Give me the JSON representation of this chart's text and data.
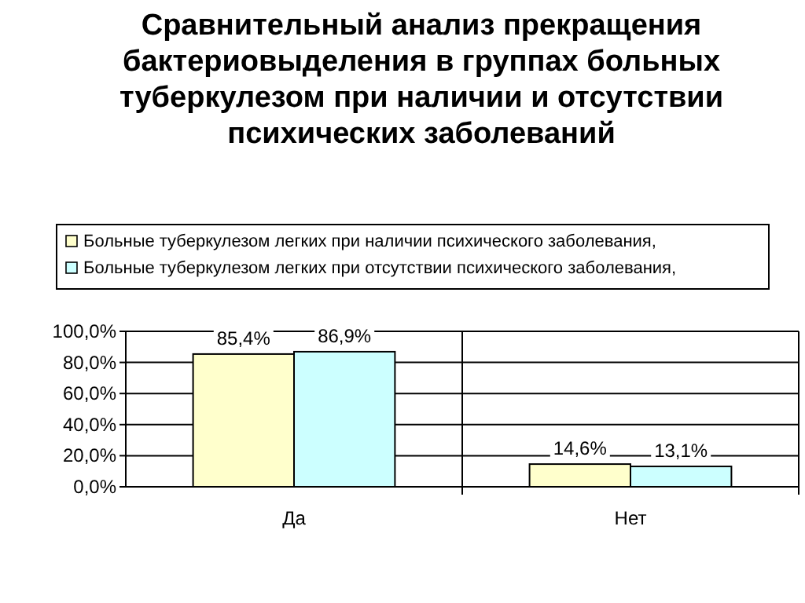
{
  "chart_data": {
    "type": "bar",
    "title": "Сравнительный анализ прекращения бактериовыделения в группах больных туберкулезом при наличии и отсутствии психических заболеваний",
    "categories": [
      "Да",
      "Нет"
    ],
    "series": [
      {
        "name": "Больные туберкулезом легких при наличии психического заболевания,",
        "color": "#ffffcc",
        "values": [
          85.4,
          14.6
        ],
        "value_labels": [
          "85,4%",
          "14,6%"
        ]
      },
      {
        "name": "Больные туберкулезом легких при отсутствии психического заболевания,",
        "color": "#ccffff",
        "values": [
          86.9,
          13.1
        ],
        "value_labels": [
          "86,9%",
          "13,1%"
        ]
      }
    ],
    "ylim": [
      0,
      100
    ],
    "yticks": [
      {
        "value": 0,
        "label": "0,0%"
      },
      {
        "value": 20,
        "label": "20,0%"
      },
      {
        "value": 40,
        "label": "40,0%"
      },
      {
        "value": 60,
        "label": "60,0%"
      },
      {
        "value": 80,
        "label": "80,0%"
      },
      {
        "value": 100,
        "label": "100,0%"
      }
    ],
    "grid": "y",
    "legend": "top"
  }
}
